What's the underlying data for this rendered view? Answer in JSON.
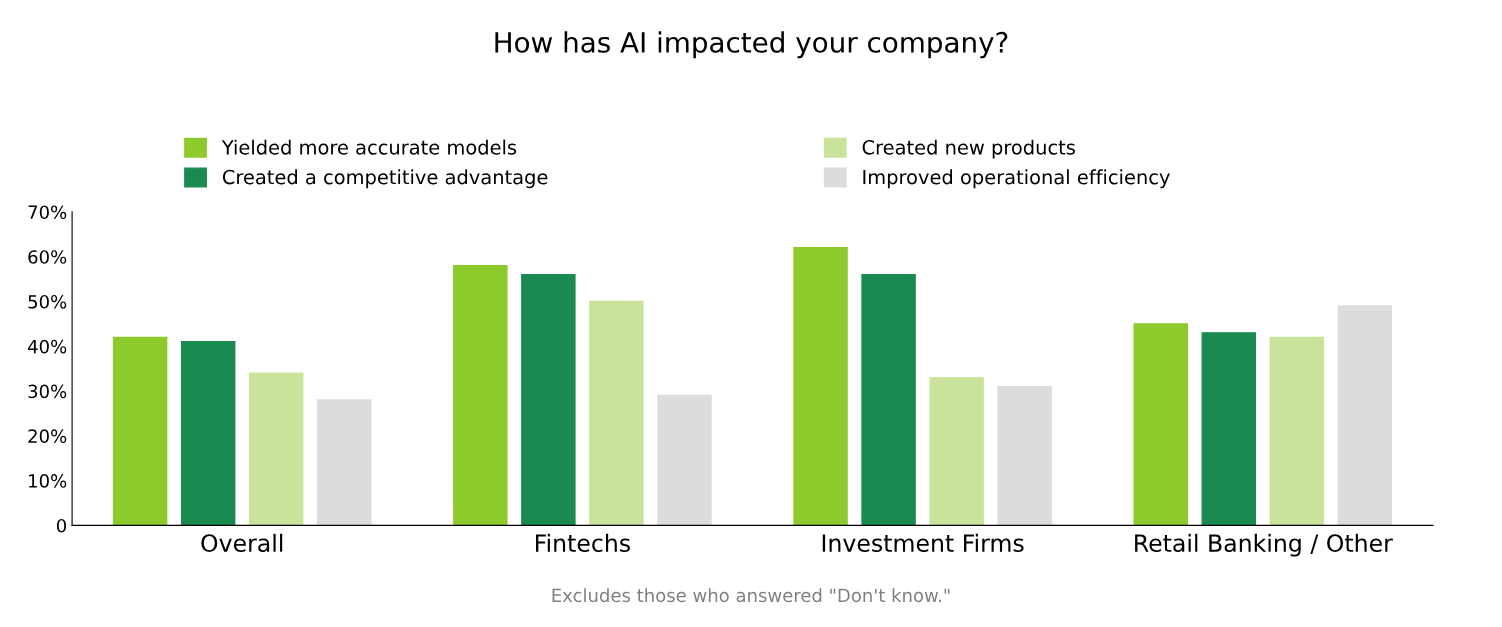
{
  "chart_data": {
    "type": "bar",
    "title": "How has AI impacted your company?",
    "categories": [
      "Overall",
      "Fintechs",
      "Investment Firms",
      "Retail Banking / Other"
    ],
    "series": [
      {
        "name": "Yielded more accurate models",
        "color": "#8dcb2c",
        "values": [
          42,
          58,
          62,
          45
        ]
      },
      {
        "name": "Created a competitive advantage",
        "color": "#1b8a50",
        "values": [
          41,
          56,
          56,
          43
        ]
      },
      {
        "name": "Created new products",
        "color": "#c9e49a",
        "values": [
          34,
          50,
          33,
          42
        ]
      },
      {
        "name": "Improved operational efficiency",
        "color": "#dcdcde",
        "values": [
          28,
          29,
          31,
          49
        ]
      }
    ],
    "ylim": [
      0,
      70
    ],
    "yticks": [
      {
        "value": 0,
        "label": "0"
      },
      {
        "value": 10,
        "label": "10%"
      },
      {
        "value": 20,
        "label": "20%"
      },
      {
        "value": 30,
        "label": "30%"
      },
      {
        "value": 40,
        "label": "40%"
      },
      {
        "value": 50,
        "label": "50%"
      },
      {
        "value": 60,
        "label": "60%"
      },
      {
        "value": 70,
        "label": "70%"
      }
    ],
    "grid": false,
    "legend": "top",
    "annotations": [
      "Excludes those who answered \"Don't know.\""
    ]
  }
}
